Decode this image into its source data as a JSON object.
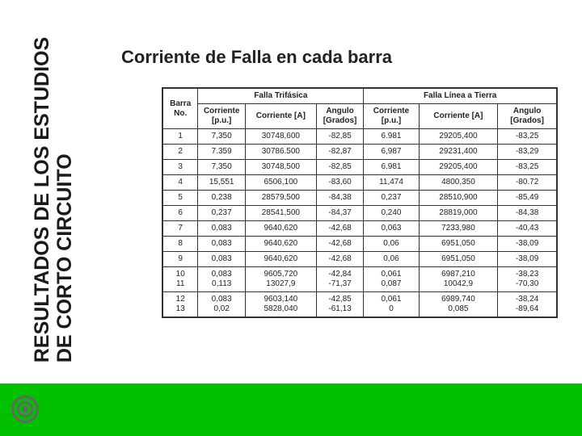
{
  "colors": {
    "accent_green": "#00c000",
    "text": "#222222",
    "border": "#333333",
    "background": "#ffffff",
    "bullseye": "#666666"
  },
  "side_title_line1": "RESULTADOS DE LOS ESTUDIOS",
  "side_title_line2": "DE CORTO CIRCUITO",
  "main_title": "Corriente de Falla en cada barra",
  "table": {
    "group_headers": [
      "Falla Trifásica",
      "Falla Línea a Tierra"
    ],
    "columns": [
      "Barra No.",
      "Corriente [p.u.]",
      "Corriente [A]",
      "Angulo [Grados]",
      "Corriente [p.u.]",
      "Corriente [A]",
      "Angulo [Grados]"
    ],
    "rows": [
      [
        "1",
        "7,350",
        "30748,600",
        "-82,85",
        "6.981",
        "29205,400",
        "-83,25"
      ],
      [
        "2",
        "7.359",
        "30786.500",
        "-82,87",
        "6,987",
        "29231,400",
        "-83,29"
      ],
      [
        "3",
        "7,350",
        "30748,500",
        "-82,85",
        "6.981",
        "29205,400",
        "-83,25"
      ],
      [
        "4",
        "15,551",
        "6506,100",
        "-83,60",
        "11,474",
        "4800,350",
        "-80.72"
      ],
      [
        "5",
        "0,238",
        "28579,500",
        "-84,38",
        "0,237",
        "28510,900",
        "-85,49"
      ],
      [
        "6",
        "0,237",
        "28541,500",
        "-84,37",
        "0,240",
        "28819,000",
        "-84,38"
      ],
      [
        "7",
        "0,083",
        "9640,620",
        "-42,68",
        "0,063",
        "7233,980",
        "-40,43"
      ],
      [
        "8",
        "0,083",
        "9640,620",
        "-42,68",
        "0,06",
        "6951,050",
        "-38,09"
      ],
      [
        "9",
        "0,083",
        "9640,620",
        "-42,68",
        "0,06",
        "6951,050",
        "-38,09"
      ],
      [
        "10\n11",
        "0,083\n0,113",
        "9605,720\n13027,9",
        "-42,84\n-71,37",
        "0,061\n0,087",
        "6987,210\n10042,9",
        "-38,23\n-70,30"
      ],
      [
        "12\n13",
        "0,083\n0,02",
        "9603,140\n5828,040",
        "-42,85\n-61,13",
        "0,061\n0",
        "6989,740\n0,085",
        "-38,24\n-89,64"
      ]
    ]
  }
}
